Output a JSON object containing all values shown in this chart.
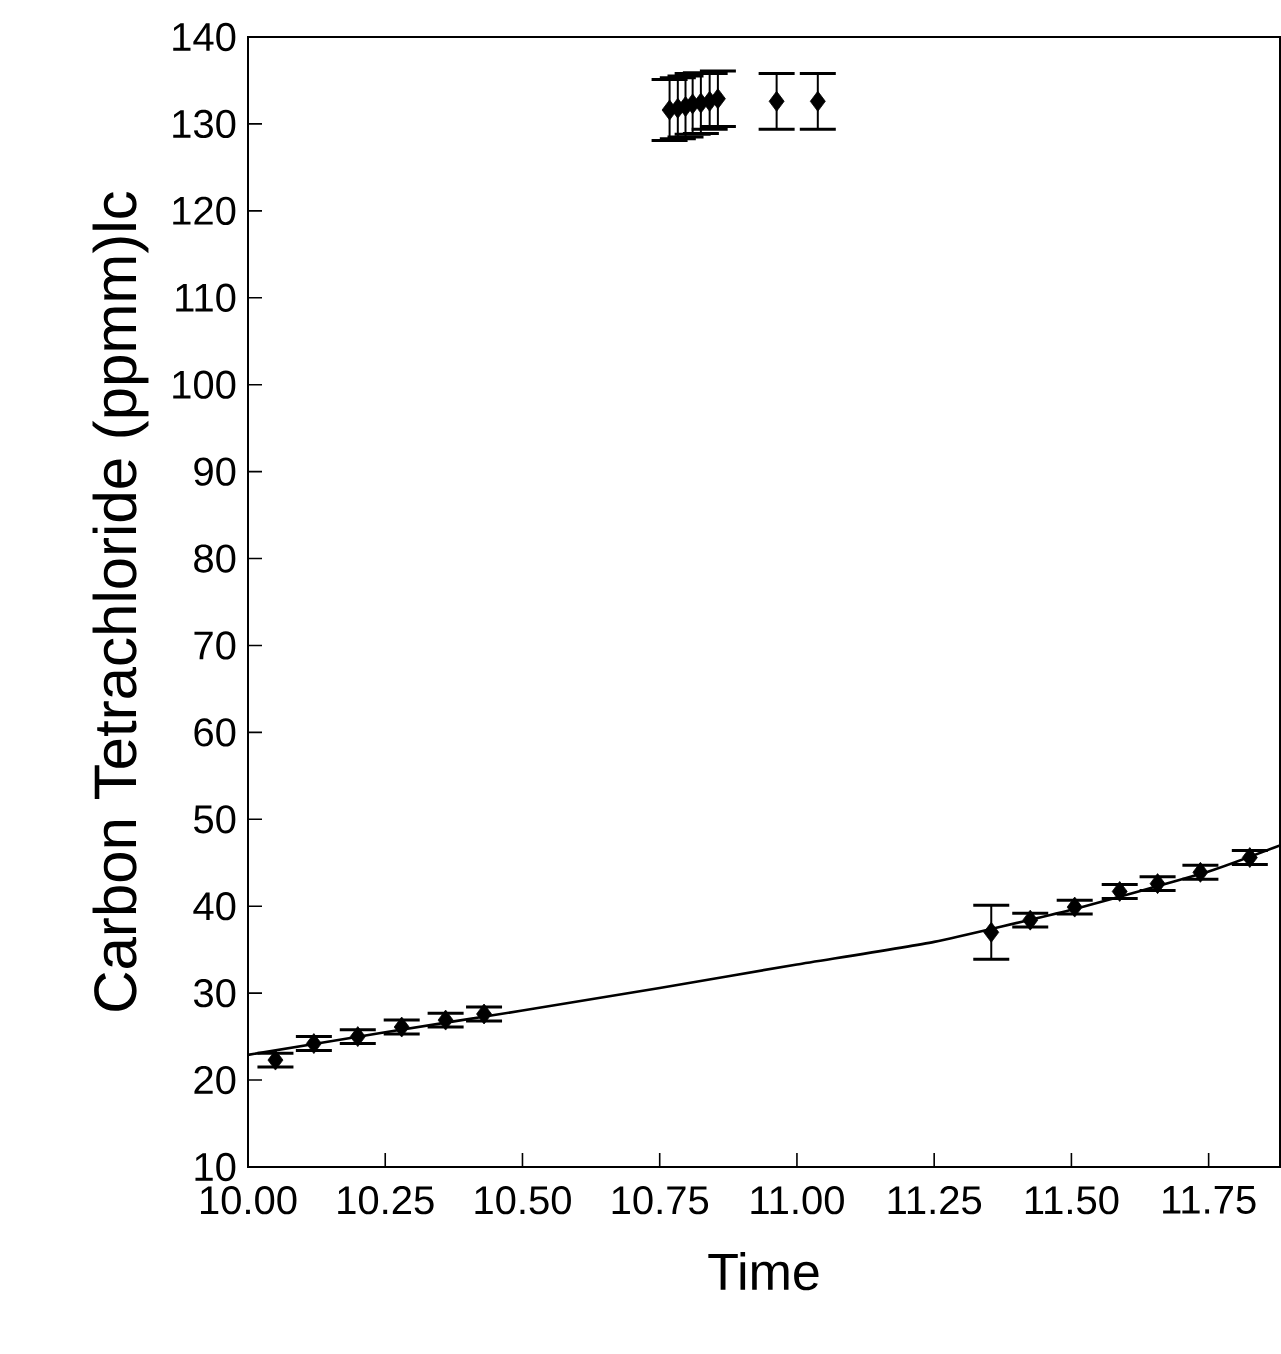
{
  "chart_data": {
    "type": "scatter",
    "xlabel": "Time",
    "ylabel": "Carbon Tetrachloride (ppmm)lc",
    "xlim": [
      10,
      11.88
    ],
    "ylim": [
      10,
      140
    ],
    "xticks": [
      {
        "value": 10,
        "label": "10.00"
      },
      {
        "value": 10.25,
        "label": "10.25"
      },
      {
        "value": 10.5,
        "label": "10.50"
      },
      {
        "value": 10.75,
        "label": "10.75"
      },
      {
        "value": 11,
        "label": "11.00"
      },
      {
        "value": 11.25,
        "label": "11.25"
      },
      {
        "value": 11.5,
        "label": "11.50"
      },
      {
        "value": 11.75,
        "label": "11.75"
      }
    ],
    "yticks": [
      10,
      20,
      30,
      40,
      50,
      60,
      70,
      80,
      90,
      100,
      110,
      120,
      130,
      140
    ],
    "series": [
      {
        "color": "#000000",
        "marker": "diamond",
        "x": [
          10.05,
          10.12,
          10.2,
          10.28,
          10.36,
          10.43,
          10.768,
          10.783,
          10.797,
          10.81,
          10.825,
          10.841,
          10.856,
          10.963,
          11.038,
          11.354,
          11.425,
          11.506,
          11.588,
          11.657,
          11.735,
          11.825
        ],
        "values": [
          22.3,
          24.2,
          25.0,
          26.1,
          26.9,
          27.6,
          131.6,
          131.8,
          132.0,
          132.3,
          132.4,
          132.6,
          132.9,
          132.6,
          132.6,
          37.0,
          38.4,
          39.9,
          41.7,
          42.6,
          43.9,
          45.6
        ],
        "errors": [
          0.8,
          0.8,
          0.8,
          0.8,
          0.8,
          0.8,
          3.5,
          3.5,
          3.5,
          3.5,
          3.5,
          3.2,
          3.2,
          3.2,
          3.2,
          3.1,
          0.8,
          0.8,
          0.8,
          0.8,
          0.8,
          0.8
        ]
      },
      {
        "type": "line",
        "color": "#000000",
        "marker": "none",
        "x": [
          10.0,
          10.25,
          10.5,
          10.75,
          11.0,
          11.25,
          11.5,
          11.75,
          11.88
        ],
        "values": [
          22.9,
          25.5,
          28.0,
          30.6,
          33.3,
          35.9,
          39.6,
          44.0,
          47.0
        ]
      }
    ]
  }
}
